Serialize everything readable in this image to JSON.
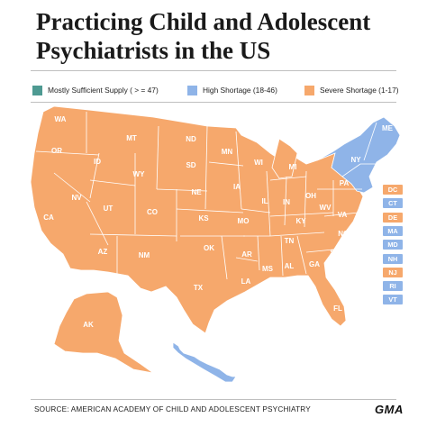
{
  "title": "Practicing Child and Adolescent Psychiatrists in the US",
  "colors": {
    "sufficient": "#4e9a92",
    "high": "#8fb4e8",
    "severe": "#f6a86c",
    "outline": "#ffffff",
    "text": "#1a1a1a"
  },
  "legend": [
    {
      "label": "Mostly Sufficient Supply ( > = 47)",
      "color": "#4e9a92"
    },
    {
      "label": "High Shortage (18-46)",
      "color": "#8fb4e8"
    },
    {
      "label": "Severe Shortage (1-17)",
      "color": "#f6a86c"
    }
  ],
  "states": [
    {
      "abbr": "WA",
      "status": "severe"
    },
    {
      "abbr": "OR",
      "status": "severe"
    },
    {
      "abbr": "CA",
      "status": "severe"
    },
    {
      "abbr": "ID",
      "status": "severe"
    },
    {
      "abbr": "NV",
      "status": "severe"
    },
    {
      "abbr": "MT",
      "status": "severe"
    },
    {
      "abbr": "WY",
      "status": "severe"
    },
    {
      "abbr": "UT",
      "status": "severe"
    },
    {
      "abbr": "AZ",
      "status": "severe"
    },
    {
      "abbr": "CO",
      "status": "severe"
    },
    {
      "abbr": "NM",
      "status": "severe"
    },
    {
      "abbr": "ND",
      "status": "severe"
    },
    {
      "abbr": "SD",
      "status": "severe"
    },
    {
      "abbr": "NE",
      "status": "severe"
    },
    {
      "abbr": "KS",
      "status": "severe"
    },
    {
      "abbr": "OK",
      "status": "severe"
    },
    {
      "abbr": "TX",
      "status": "severe"
    },
    {
      "abbr": "MN",
      "status": "severe"
    },
    {
      "abbr": "IA",
      "status": "severe"
    },
    {
      "abbr": "MO",
      "status": "severe"
    },
    {
      "abbr": "AR",
      "status": "severe"
    },
    {
      "abbr": "LA",
      "status": "severe"
    },
    {
      "abbr": "WI",
      "status": "severe"
    },
    {
      "abbr": "IL",
      "status": "severe"
    },
    {
      "abbr": "MI",
      "status": "severe"
    },
    {
      "abbr": "IN",
      "status": "severe"
    },
    {
      "abbr": "OH",
      "status": "severe"
    },
    {
      "abbr": "KY",
      "status": "severe"
    },
    {
      "abbr": "TN",
      "status": "severe"
    },
    {
      "abbr": "MS",
      "status": "severe"
    },
    {
      "abbr": "AL",
      "status": "severe"
    },
    {
      "abbr": "GA",
      "status": "severe"
    },
    {
      "abbr": "FL",
      "status": "severe"
    },
    {
      "abbr": "SC",
      "status": "severe"
    },
    {
      "abbr": "NC",
      "status": "severe"
    },
    {
      "abbr": "VA",
      "status": "severe"
    },
    {
      "abbr": "WV",
      "status": "severe"
    },
    {
      "abbr": "PA",
      "status": "severe"
    },
    {
      "abbr": "NY",
      "status": "high"
    },
    {
      "abbr": "ME",
      "status": "high"
    },
    {
      "abbr": "AK",
      "status": "severe"
    },
    {
      "abbr": "HI",
      "status": "high"
    }
  ],
  "small_states": [
    {
      "abbr": "DC",
      "status": "severe"
    },
    {
      "abbr": "CT",
      "status": "high"
    },
    {
      "abbr": "DE",
      "status": "severe"
    },
    {
      "abbr": "MA",
      "status": "high"
    },
    {
      "abbr": "MD",
      "status": "high"
    },
    {
      "abbr": "NH",
      "status": "high"
    },
    {
      "abbr": "NJ",
      "status": "severe"
    },
    {
      "abbr": "RI",
      "status": "high"
    },
    {
      "abbr": "VT",
      "status": "high"
    }
  ],
  "source": "SOURCE: AMERICAN ACADEMY OF CHILD AND ADOLESCENT PSYCHIATRY",
  "logo": "GMA"
}
